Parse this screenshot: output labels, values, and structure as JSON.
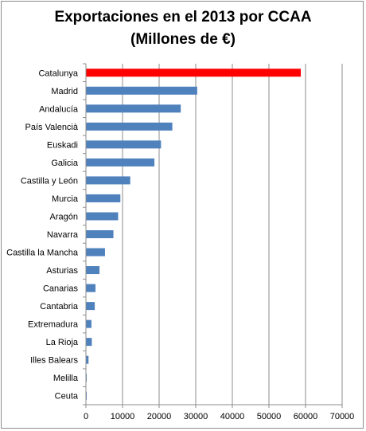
{
  "chart_data": {
    "type": "bar",
    "orientation": "horizontal",
    "title_line1": "Exportaciones en el 2013 por CCAA",
    "title_line2": "(Millones de €)",
    "categories": [
      "Catalunya",
      "Madrid",
      "Andalucía",
      "País Valencià",
      "Euskadi",
      "Galicia",
      "Castilla y León",
      "Murcia",
      "Aragón",
      "Navarra",
      "Castilla la Mancha",
      "Asturias",
      "Canarias",
      "Cantabria",
      "Extremadura",
      "La Rioja",
      "Illes Balears",
      "Melilla",
      "Ceuta"
    ],
    "values": [
      58600,
      30300,
      25800,
      23500,
      20400,
      18600,
      12000,
      9300,
      8700,
      7400,
      5100,
      3600,
      2500,
      2300,
      1400,
      1500,
      600,
      20,
      10
    ],
    "highlight": "Catalunya",
    "colors": {
      "bar": "#4f81bd",
      "highlight": "#ff0000",
      "grid": "#8c8c8c"
    },
    "xlim": [
      0,
      70000
    ],
    "xticks": [
      0,
      10000,
      20000,
      30000,
      40000,
      50000,
      60000,
      70000
    ],
    "grid": true
  }
}
